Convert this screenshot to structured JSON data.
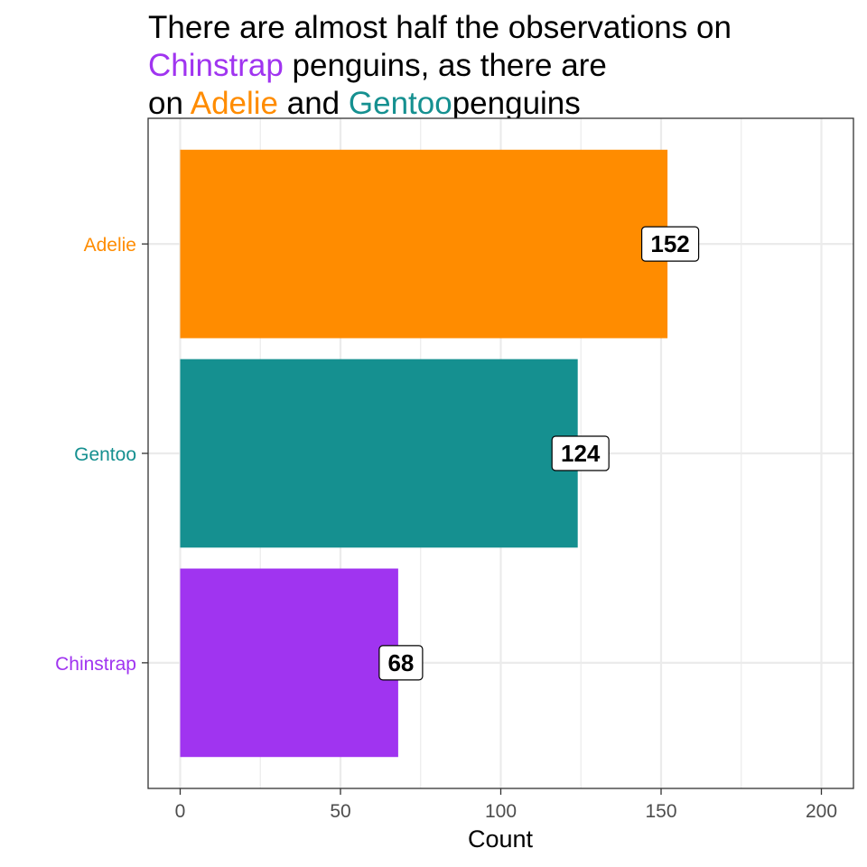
{
  "title": {
    "lines": [
      [
        {
          "text": "There are almost half the observations on",
          "color": "#000000"
        }
      ],
      [
        {
          "text": "Chinstrap",
          "color": "#A034F0"
        },
        {
          "text": " penguins, as there are",
          "color": "#000000"
        }
      ],
      [
        {
          "text": "on ",
          "color": "#000000"
        },
        {
          "text": "Adelie",
          "color": "#FF8C00"
        },
        {
          "text": " and ",
          "color": "#000000"
        },
        {
          "text": "Gentoo",
          "color": "#159090"
        },
        {
          "text": "penguins",
          "color": "#000000"
        }
      ]
    ]
  },
  "chart_data": {
    "type": "bar",
    "orientation": "horizontal",
    "categories": [
      "Adelie",
      "Gentoo",
      "Chinstrap"
    ],
    "values": [
      152,
      124,
      68
    ],
    "colors": [
      "#FF8C00",
      "#159090",
      "#A034F0"
    ],
    "data_labels": [
      "152",
      "124",
      "68"
    ],
    "xlabel": "Count",
    "ylabel": "",
    "xlim": [
      -10,
      210
    ],
    "xticks": [
      0,
      50,
      100,
      150,
      200
    ],
    "xtick_labels": [
      "0",
      "50",
      "100",
      "150",
      "200"
    ],
    "grid": true,
    "legend": "none"
  }
}
